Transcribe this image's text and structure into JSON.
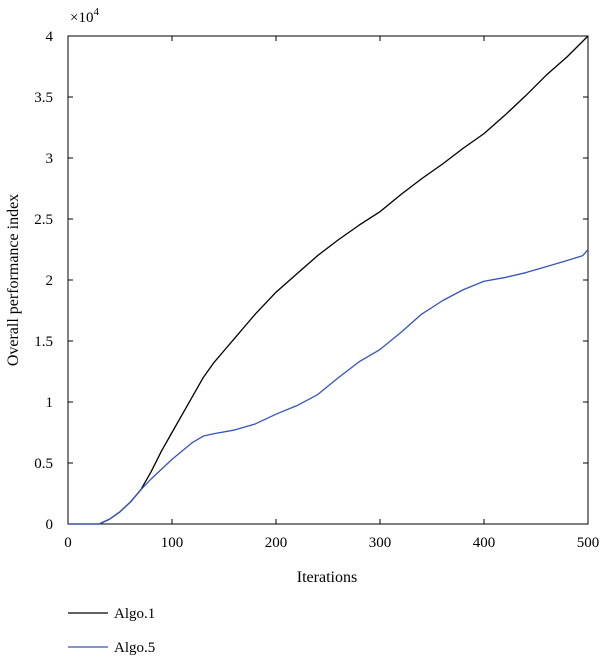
{
  "chart_data": {
    "type": "line",
    "xlabel": "Iterations",
    "ylabel": "Overall performance index",
    "y_multiplier": "×10",
    "y_multiplier_exponent": "4",
    "xlim": [
      0,
      500
    ],
    "ylim": [
      0,
      4
    ],
    "xticks": [
      0,
      100,
      200,
      300,
      400,
      500
    ],
    "xtick_labels": [
      "0",
      "100",
      "200",
      "300",
      "400",
      "500"
    ],
    "yticks": [
      0,
      0.5,
      1,
      1.5,
      2,
      2.5,
      3,
      3.5,
      4
    ],
    "ytick_labels": [
      "0",
      "0.5",
      "1",
      "1.5",
      "2",
      "2.5",
      "3",
      "3.5",
      "4"
    ],
    "grid": false,
    "legend_position": "bottom-left, below plot",
    "series": [
      {
        "name": "Algo.1",
        "color": "#000000",
        "x": [
          0,
          30,
          40,
          50,
          60,
          70,
          80,
          90,
          100,
          110,
          120,
          130,
          140,
          150,
          160,
          170,
          180,
          190,
          200,
          220,
          240,
          260,
          280,
          300,
          320,
          340,
          360,
          380,
          400,
          420,
          440,
          460,
          480,
          500
        ],
        "y": [
          0,
          0,
          0.04,
          0.1,
          0.18,
          0.28,
          0.43,
          0.6,
          0.75,
          0.9,
          1.05,
          1.2,
          1.32,
          1.42,
          1.52,
          1.62,
          1.72,
          1.81,
          1.9,
          2.05,
          2.2,
          2.33,
          2.45,
          2.56,
          2.7,
          2.83,
          2.95,
          3.08,
          3.2,
          3.35,
          3.51,
          3.68,
          3.83,
          4.0
        ]
      },
      {
        "name": "Algo.5",
        "color": "#3355bb",
        "x": [
          0,
          30,
          40,
          50,
          60,
          70,
          80,
          90,
          100,
          110,
          120,
          130,
          140,
          160,
          180,
          200,
          220,
          240,
          260,
          280,
          300,
          320,
          340,
          360,
          380,
          400,
          420,
          440,
          460,
          480,
          495,
          500
        ],
        "y": [
          0,
          0,
          0.04,
          0.1,
          0.18,
          0.28,
          0.37,
          0.45,
          0.53,
          0.6,
          0.67,
          0.72,
          0.74,
          0.77,
          0.82,
          0.9,
          0.97,
          1.06,
          1.2,
          1.33,
          1.43,
          1.57,
          1.72,
          1.83,
          1.92,
          1.99,
          2.02,
          2.06,
          2.11,
          2.16,
          2.2,
          2.25
        ]
      }
    ]
  }
}
